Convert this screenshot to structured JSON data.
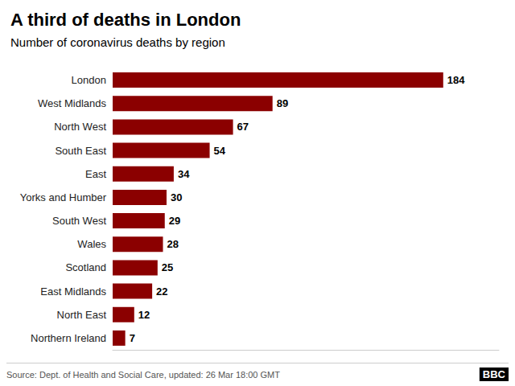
{
  "chart_data": {
    "type": "bar",
    "orientation": "horizontal",
    "title": "A third of deaths in London",
    "subtitle": "Number of coronavirus deaths by region",
    "source": "Source: Dept. of Health and Social Care, updated: 26 Mar 18:00 GMT",
    "annotations": [
      "BBC"
    ],
    "categories": [
      "Northern Ireland",
      "North East",
      "East Midlands",
      "Scotland",
      "Wales",
      "South West",
      "Yorks and Humber",
      "East",
      "South East",
      "North West",
      "West Midlands",
      "London"
    ],
    "values": [
      7,
      12,
      22,
      25,
      28,
      29,
      30,
      34,
      54,
      67,
      89,
      184
    ],
    "color": "#8B0000",
    "xlim": [
      0,
      215
    ],
    "grid": false,
    "data_labels": true,
    "tick_labels": "y"
  }
}
